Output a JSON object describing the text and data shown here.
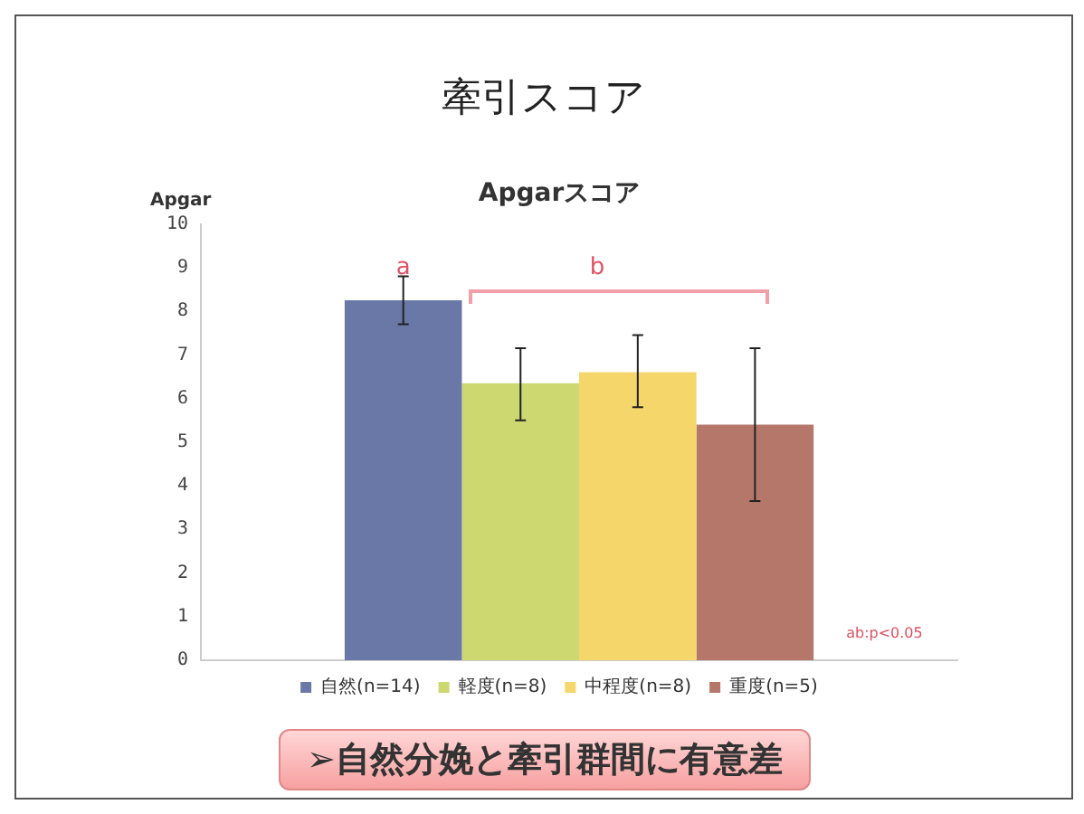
{
  "chart_data": {
    "type": "bar",
    "title": "牽引スコア",
    "subtitle": "Apgarスコア",
    "ylabel": "Apgar",
    "categories": [
      null
    ],
    "series": [
      {
        "name": "自然(n=14)",
        "color": "#6a78a8",
        "values": [
          8.25
        ],
        "errors": [
          [
            7.7,
            8.8
          ]
        ]
      },
      {
        "name": "軽度(n=8)",
        "color": "#cdd870",
        "values": [
          6.35
        ],
        "errors": [
          [
            5.5,
            7.15
          ]
        ]
      },
      {
        "name": "中程度(n=8)",
        "color": "#f5d66a",
        "values": [
          6.6
        ],
        "errors": [
          [
            5.8,
            7.45
          ]
        ]
      },
      {
        "name": "重度(n=5)",
        "color": "#b5776a",
        "values": [
          5.4
        ],
        "errors": [
          [
            3.65,
            7.15
          ]
        ]
      }
    ],
    "ylim": [
      0,
      10
    ],
    "yticks": [
      0,
      1,
      2,
      3,
      4,
      5,
      6,
      7,
      8,
      9,
      10
    ],
    "grid": false,
    "legend": "bottom",
    "annotations": [
      "a",
      "b",
      "ab:p<0.05",
      "➢自然分娩と牽引群間に有意差"
    ]
  }
}
